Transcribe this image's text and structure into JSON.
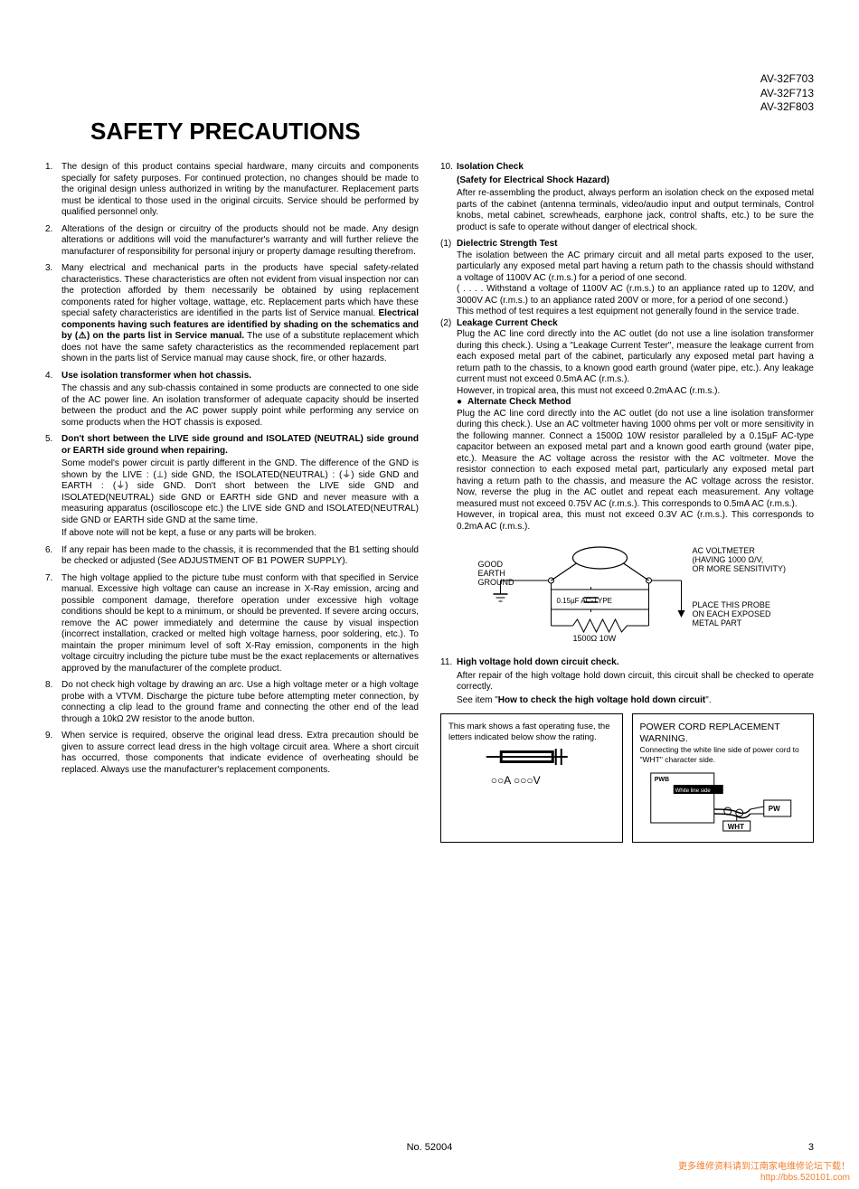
{
  "models": [
    "AV-32F703",
    "AV-32F713",
    "AV-32F803"
  ],
  "title": "SAFETY PRECAUTIONS",
  "left_items": [
    {
      "num": "1.",
      "paras": [
        "The design of this product contains special hardware, many circuits and components specially for safety purposes. For continued protection, no changes should be made to the original design unless authorized in writing by the manufacturer. Replacement parts must be identical to those used in the original circuits. Service should be performed by qualified personnel only."
      ]
    },
    {
      "num": "2.",
      "paras": [
        "Alterations of the design or circuitry of the products should not be made. Any design alterations or additions will void the manufacturer's warranty and will further relieve the manufacturer of responsibility for personal injury or property damage resulting therefrom."
      ]
    },
    {
      "num": "3.",
      "paras": [
        "Many electrical and mechanical parts in the products have special safety-related characteristics. These characteristics are often not evident from visual inspection nor can the protection afforded by them necessarily be obtained by using replacement components rated for higher voltage, wattage, etc. Replacement parts which have these special safety characteristics are identified in the parts list of Service manual. <b>Electrical components having such features are identified by shading on the schematics and by (⚠) on the parts list in Service manual.</b> The use of a substitute replacement which does not have the same safety characteristics as the recommended replacement part shown in the parts list of Service manual may cause shock, fire, or other hazards."
      ]
    },
    {
      "num": "4.",
      "paras": [
        "<b>Use isolation transformer when hot chassis.</b>",
        "The chassis and any sub-chassis contained in some products are connected to one side of the AC power line. An isolation transformer of adequate capacity should be inserted between the product and the AC power supply point while performing any service on some products when the HOT chassis is exposed."
      ]
    },
    {
      "num": "5.",
      "paras": [
        "<b>Don't short between the LIVE side ground and ISOLATED (NEUTRAL) side ground or EARTH side ground when repairing.</b>",
        "Some model's power circuit is partly different in the GND. The difference of the GND is shown by the LIVE : (⊥) side GND, the ISOLATED(NEUTRAL) : (⏚) side GND and EARTH : (⏚) side GND. Don't short between the LIVE side GND and ISOLATED(NEUTRAL) side GND or EARTH side GND and never measure with a measuring apparatus (oscilloscope etc.) the LIVE side GND and ISOLATED(NEUTRAL) side GND or EARTH side GND at the same time.",
        "If above note will not be kept, a fuse or any parts will be broken."
      ]
    },
    {
      "num": "6.",
      "paras": [
        "If any repair has been made to the chassis, it is recommended that the B1 setting should be checked or adjusted (See ADJUSTMENT OF B1 POWER SUPPLY)."
      ]
    },
    {
      "num": "7.",
      "paras": [
        "The high voltage applied to the picture tube must conform with that specified in Service manual. Excessive high voltage can cause an increase in X-Ray emission, arcing and possible component damage, therefore operation under excessive high voltage conditions should be kept to a minimum, or should be prevented. If severe arcing occurs, remove the AC power immediately and determine the cause by visual inspection (incorrect installation, cracked or melted high voltage harness, poor soldering, etc.). To maintain the proper minimum level of soft X-Ray emission, components in the high voltage circuitry including the picture tube must be the exact replacements or alternatives approved by the manufacturer of the complete product."
      ]
    },
    {
      "num": "8.",
      "paras": [
        "Do not check high voltage by drawing an arc. Use a high voltage meter or a high voltage probe with a VTVM. Discharge the picture tube before attempting meter connection, by connecting a clip lead to the ground frame and connecting the other end of the lead through a 10kΩ 2W resistor to the anode button."
      ]
    },
    {
      "num": "9.",
      "paras": [
        "When service is required, observe the original lead dress. Extra precaution should be given to assure correct lead dress in the high voltage circuit area. Where a short circuit has occurred, those components that indicate evidence of overheating should be replaced. Always use the manufacturer's replacement components."
      ]
    }
  ],
  "right_items": [
    {
      "num": "10.",
      "heading": "Isolation Check",
      "subheading": "(Safety for Electrical Shock Hazard)",
      "intro": "After re-assembling the product, always perform an isolation check on the exposed metal parts of the cabinet (antenna terminals, video/audio input and output terminals, Control knobs, metal cabinet, screwheads, earphone jack, control shafts, etc.) to be sure the product is safe to operate without danger of electrical shock.",
      "subs": [
        {
          "label": "(1)",
          "title": "Dielectric Strength Test",
          "paras": [
            "The isolation between the AC primary circuit and all metal parts exposed to the user, particularly any exposed metal part having a return path to the chassis should withstand a voltage of 1100V AC (r.m.s.) for a period of one second.",
            "( . . . . Withstand a voltage of 1100V AC (r.m.s.) to an appliance rated up to 120V, and 3000V AC (r.m.s.) to an appliance rated 200V or more, for a period of one second.)",
            "This method of test requires a test equipment not generally found in the service trade."
          ]
        },
        {
          "label": "(2)",
          "title": "Leakage Current Check",
          "paras": [
            "Plug the AC line cord directly into the AC outlet (do not use a line isolation transformer during this check.). Using a \"Leakage Current Tester\", measure the leakage current from each exposed metal part of the cabinet, particularly any exposed metal part having a return path to the chassis, to a known good earth ground (water pipe, etc.). Any leakage current must not exceed 0.5mA AC (r.m.s.).",
            "However, in tropical area, this must not exceed 0.2mA AC (r.m.s.)."
          ],
          "alt_title": "Alternate Check Method",
          "alt_paras": [
            "Plug the AC line cord directly into the AC outlet (do not use a line isolation transformer during this check.). Use an AC voltmeter having 1000 ohms per volt or more sensitivity in the following manner. Connect a 1500Ω 10W resistor paralleled by a 0.15µF AC-type capacitor between an exposed metal part and a known good earth ground (water pipe, etc.). Measure the AC voltage across the resistor with the AC voltmeter. Move the resistor connection to each exposed metal part, particularly any exposed metal part having a return path to the chassis, and measure the AC voltage across the resistor. Now, reverse the plug in the AC outlet and repeat each measurement. Any voltage measured must not exceed 0.75V AC (r.m.s.).    This corresponds to 0.5mA AC (r.m.s.).",
            "However, in tropical area, this must not exceed 0.3V AC (r.m.s.).    This corresponds to 0.2mA AC (r.m.s.)."
          ]
        }
      ]
    }
  ],
  "diagram": {
    "good_earth": "GOOD\nEARTH\nGROUND",
    "cap_label": "0.15µF AC-TYPE",
    "res_label": "1500Ω 10W",
    "voltmeter": "AC VOLTMETER\n(HAVING 1000 Ω/V,\nOR MORE SENSITIVITY)",
    "probe": "PLACE THIS PROBE\nON EACH EXPOSED\nMETAL PART"
  },
  "item11": {
    "num": "11.",
    "heading": "High voltage hold down circuit check.",
    "body": "After repair of the high voltage hold down circuit, this circuit shall be checked to operate correctly.",
    "see": "See item \"How to check the high voltage hold down circuit\"."
  },
  "fuse_box": {
    "text": "This mark shows a fast operating fuse, the letters indicated below show the rating.",
    "dummy": "○○A ○○○V"
  },
  "cord_box": {
    "title": "POWER CORD REPLACEMENT WARNING.",
    "text": "Connecting the white line side of power cord to \"WHT\" character side.",
    "pwb": "PWB",
    "wls": "White line side",
    "pw": "PW",
    "wht": "WHT"
  },
  "doc_no": "No. 52004",
  "page": "3",
  "watermark_cn": "更多维修资料请到江南家电维修论坛下载！",
  "watermark_url": "http://bbs.520101.com"
}
